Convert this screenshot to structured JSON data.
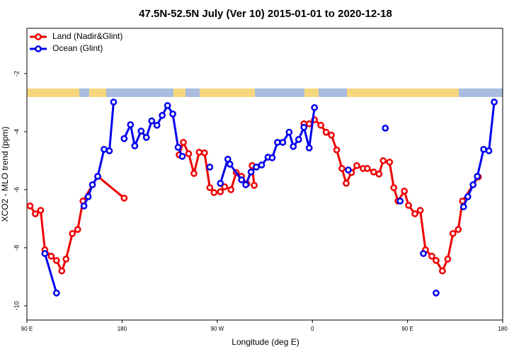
{
  "chart_data": {
    "type": "line",
    "title": "47.5N-52.5N July (Ver 10)   2015-01-01 to 2020-12-18",
    "x_label": "Longitude (deg E)",
    "y_label": "XCO2 - MLO trend (ppm)",
    "xlim": [
      90,
      540
    ],
    "ylim": [
      -10.49,
      -0.44
    ],
    "xticks": [
      {
        "value": 90,
        "label": "90 E"
      },
      {
        "value": 180,
        "label": "180"
      },
      {
        "value": 270,
        "label": "90 W"
      },
      {
        "value": 360,
        "label": "0"
      },
      {
        "value": 450,
        "label": "90 E"
      },
      {
        "value": 540,
        "label": "180"
      }
    ],
    "yticks": [
      -10,
      -8,
      -6,
      -4,
      -2
    ],
    "legend": "top-left",
    "series": [
      {
        "name": "Land (Nadir&Glint)",
        "color": "#ee0000",
        "x": [
          93,
          98,
          103,
          107,
          113,
          118,
          123,
          127,
          133,
          138,
          143,
          157,
          182,
          null,
          234,
          238,
          243,
          248,
          253,
          258,
          263,
          267,
          273,
          277,
          283,
          288,
          293,
          298,
          303,
          305,
          null,
          352,
          357,
          362,
          368,
          373,
          378,
          383,
          388,
          392,
          397,
          402,
          408,
          412,
          418,
          423,
          427,
          433,
          437,
          441,
          447,
          451,
          457,
          462,
          467,
          473,
          477,
          483,
          488,
          493,
          498,
          502,
          517
        ],
        "values": [
          -6.56,
          -6.83,
          -6.71,
          -8.07,
          -8.29,
          -8.44,
          -8.8,
          -8.39,
          -7.51,
          -7.37,
          -6.39,
          -5.54,
          -6.29,
          null,
          -4.8,
          -4.37,
          -4.76,
          -5.44,
          -4.71,
          -4.73,
          -5.93,
          -6.1,
          -6.07,
          -5.9,
          -6.0,
          -5.41,
          -5.54,
          -5.8,
          -5.17,
          -5.85,
          null,
          -3.73,
          -3.73,
          -3.59,
          -3.78,
          -4.02,
          -4.12,
          -4.63,
          -5.27,
          -5.78,
          -5.41,
          -5.17,
          -5.27,
          -5.27,
          -5.39,
          -5.46,
          -5.0,
          -5.05,
          -5.93,
          -6.39,
          -6.05,
          -6.54,
          -6.83,
          -6.71,
          -8.07,
          -8.29,
          -8.44,
          -8.8,
          -8.39,
          -7.51,
          -7.37,
          -6.39,
          -5.56
        ]
      },
      {
        "name": "Ocean (Glint)",
        "color": "#0000ee",
        "x": [
          107,
          118,
          null,
          144,
          148,
          152,
          157,
          163,
          168,
          172,
          null,
          182,
          188,
          192,
          198,
          203,
          208,
          213,
          218,
          223,
          228,
          233,
          237,
          null,
          263,
          null,
          273,
          280,
          282,
          293,
          297,
          302,
          307,
          312,
          318,
          322,
          327,
          332,
          338,
          342,
          347,
          352,
          357,
          362,
          null,
          394,
          null,
          429,
          null,
          443,
          null,
          465,
          null,
          477,
          null,
          503,
          507,
          512,
          516,
          522,
          527,
          532
        ],
        "values": [
          -8.2,
          -9.56,
          null,
          -6.56,
          -6.24,
          -5.83,
          -5.54,
          -4.61,
          -4.66,
          -2.98,
          null,
          -4.24,
          -3.76,
          -4.49,
          -3.98,
          -4.2,
          -3.63,
          -3.78,
          -3.44,
          -3.1,
          -3.39,
          -4.54,
          -4.85,
          null,
          -5.22,
          null,
          -5.78,
          -4.95,
          -5.12,
          -5.66,
          -5.83,
          -5.39,
          -5.22,
          -5.15,
          -4.88,
          -4.9,
          -4.37,
          -4.37,
          -4.02,
          -4.51,
          -4.27,
          -3.85,
          -4.56,
          -3.17,
          null,
          -5.32,
          null,
          -3.88,
          null,
          -6.39,
          null,
          -8.2,
          null,
          -9.56,
          null,
          -6.59,
          -6.24,
          -5.83,
          -5.54,
          -4.61,
          -4.66,
          -2.98
        ]
      }
    ]
  }
}
